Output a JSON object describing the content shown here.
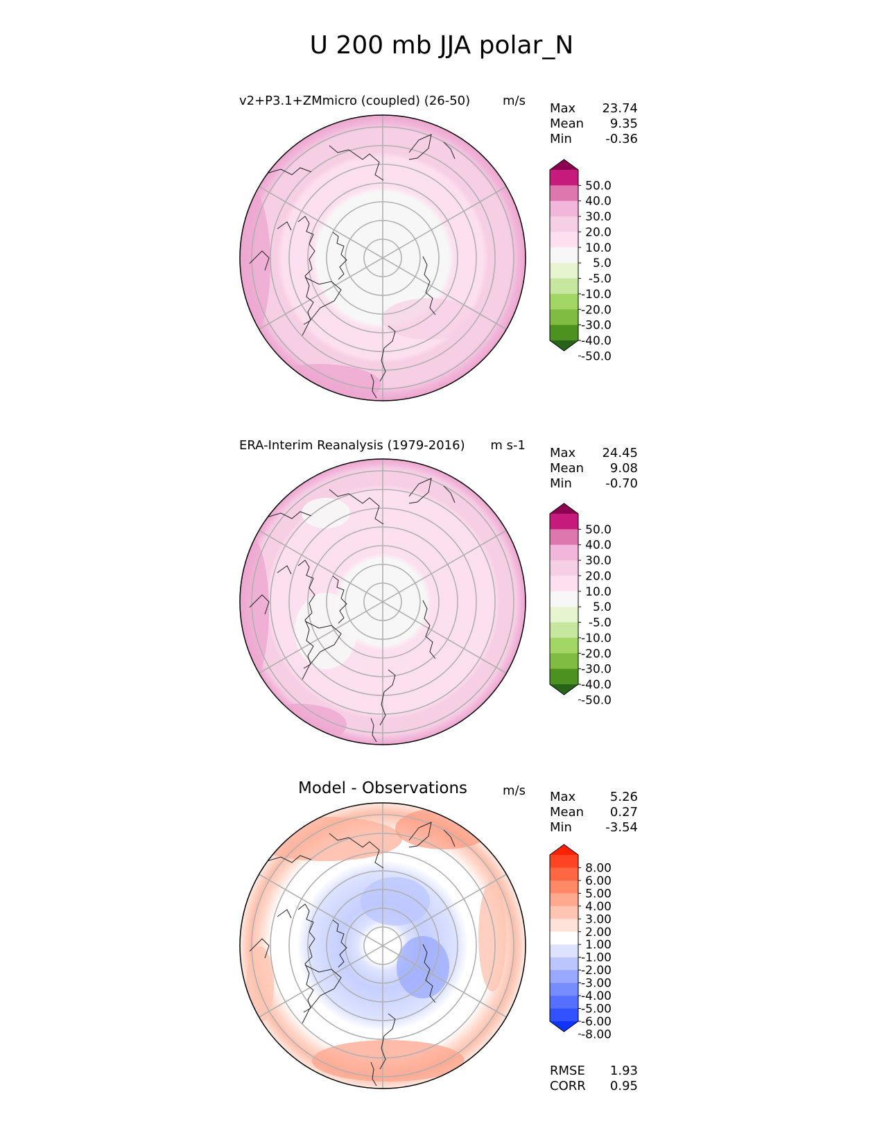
{
  "figure": {
    "title": "U 200 mb JJA polar_N"
  },
  "panels": [
    {
      "title": "v2+P3.1+ZMmicro (coupled) (26-50)",
      "units": "m/s",
      "stats": [
        {
          "label": "Max",
          "value": "23.74"
        },
        {
          "label": "Mean",
          "value": "9.35"
        },
        {
          "label": "Min",
          "value": "-0.36"
        }
      ],
      "colorbar": {
        "ticks": [
          "50.0",
          "40.0",
          "30.0",
          "20.0",
          "10.0",
          "5.0",
          "-5.0",
          "-10.0",
          "-20.0",
          "-30.0",
          "-40.0",
          "-50.0"
        ],
        "colors": [
          "#8e0152",
          "#c51b7d",
          "#de77ae",
          "#f1b6da",
          "#f7cfe5",
          "#fde0ef",
          "#f7f7f7",
          "#e6f5d0",
          "#c7e7a0",
          "#a2d665",
          "#7fbc41",
          "#4d9221",
          "#276419"
        ]
      }
    },
    {
      "title": "ERA-Interim Reanalysis (1979-2016)",
      "units": "m s-1",
      "stats": [
        {
          "label": "Max",
          "value": "24.45"
        },
        {
          "label": "Mean",
          "value": "9.08"
        },
        {
          "label": "Min",
          "value": "-0.70"
        }
      ],
      "colorbar": {
        "ticks": [
          "50.0",
          "40.0",
          "30.0",
          "20.0",
          "10.0",
          "5.0",
          "-5.0",
          "-10.0",
          "-20.0",
          "-30.0",
          "-40.0",
          "-50.0"
        ],
        "colors": [
          "#8e0152",
          "#c51b7d",
          "#de77ae",
          "#f1b6da",
          "#f7cfe5",
          "#fde0ef",
          "#f7f7f7",
          "#e6f5d0",
          "#c7e7a0",
          "#a2d665",
          "#7fbc41",
          "#4d9221",
          "#276419"
        ]
      }
    },
    {
      "title": "Model - Observations",
      "units": "m/s",
      "stats": [
        {
          "label": "Max",
          "value": "5.26"
        },
        {
          "label": "Mean",
          "value": "0.27"
        },
        {
          "label": "Min",
          "value": "-3.54"
        }
      ],
      "extra_stats": [
        {
          "label": "RMSE",
          "value": "1.93"
        },
        {
          "label": "CORR",
          "value": "0.95"
        }
      ],
      "colorbar": {
        "ticks": [
          "8.00",
          "6.00",
          "5.00",
          "4.00",
          "3.00",
          "2.00",
          "1.00",
          "-1.00",
          "-2.00",
          "-3.00",
          "-4.00",
          "-5.00",
          "-6.00",
          "-8.00"
        ],
        "colors": [
          "#ff2200",
          "#ff4422",
          "#ff6644",
          "#ff8866",
          "#ffaa90",
          "#ffc4b2",
          "#ffe2d8",
          "#ffffff",
          "#dde3ff",
          "#bbc6ff",
          "#99a9ff",
          "#778cff",
          "#556fff",
          "#3352ff",
          "#1133ff"
        ]
      }
    }
  ],
  "chart_data": [
    {
      "type": "heatmap",
      "projection": "north polar stereographic",
      "title": "v2+P3.1+ZMmicro (coupled) (26-50)",
      "units": "m/s",
      "stats": {
        "max": 23.74,
        "mean": 9.35,
        "min": -0.36
      },
      "levels": [
        -50,
        -40,
        -30,
        -20,
        -10,
        -5,
        5,
        10,
        20,
        30,
        40,
        50
      ],
      "field_bands": [
        {
          "lat_range": [
            76,
            90
          ],
          "value_range": [
            -5,
            5
          ]
        },
        {
          "lat_range": [
            65,
            76
          ],
          "value_range": [
            5,
            10
          ]
        },
        {
          "lat_range": [
            50,
            65
          ],
          "value_range": [
            10,
            20
          ]
        },
        {
          "lat_range": [
            40,
            50
          ],
          "value_range": [
            20,
            30
          ]
        }
      ]
    },
    {
      "type": "heatmap",
      "projection": "north polar stereographic",
      "title": "ERA-Interim Reanalysis (1979-2016)",
      "units": "m s-1",
      "stats": {
        "max": 24.45,
        "mean": 9.08,
        "min": -0.7
      },
      "levels": [
        -50,
        -40,
        -30,
        -20,
        -10,
        -5,
        5,
        10,
        20,
        30,
        40,
        50
      ],
      "field_bands": [
        {
          "lat_range": [
            80,
            90
          ],
          "value_range": [
            -5,
            5
          ]
        },
        {
          "lat_range": [
            60,
            80
          ],
          "value_range": [
            5,
            10
          ]
        },
        {
          "lat_range": [
            48,
            60
          ],
          "value_range": [
            10,
            20
          ]
        },
        {
          "lat_range": [
            40,
            48
          ],
          "value_range": [
            20,
            30
          ]
        }
      ]
    },
    {
      "type": "heatmap",
      "projection": "north polar stereographic",
      "title": "Model - Observations",
      "units": "m/s",
      "stats": {
        "max": 5.26,
        "mean": 0.27,
        "min": -3.54,
        "rmse": 1.93,
        "corr": 0.95
      },
      "levels": [
        -8,
        -6,
        -5,
        -4,
        -3,
        -2,
        -1,
        1,
        2,
        3,
        4,
        5,
        6,
        8
      ],
      "field_bands": [
        {
          "lat_range": [
            85,
            90
          ],
          "value_range": [
            -1,
            1
          ]
        },
        {
          "lat_range": [
            68,
            85
          ],
          "value_range": [
            -3,
            -1
          ]
        },
        {
          "lat_range": [
            45,
            55
          ],
          "value_range": [
            1,
            4
          ]
        }
      ]
    }
  ]
}
